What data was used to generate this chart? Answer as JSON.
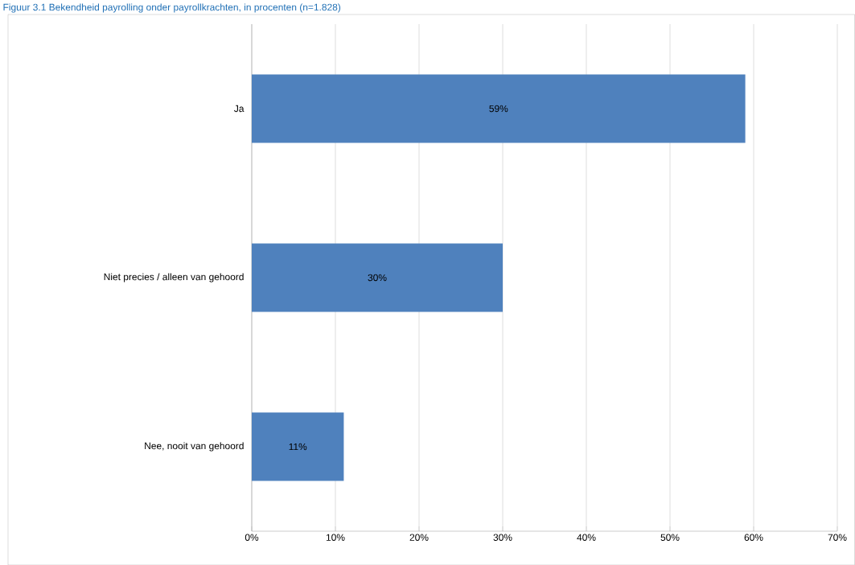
{
  "chart_data": {
    "type": "bar",
    "orientation": "horizontal",
    "title": "Figuur 3.1   Bekendheid payrolling onder payrollkrachten, in procenten (n=1.828)",
    "categories": [
      "Ja",
      "Niet precies / alleen van gehoord",
      "Nee, nooit van gehoord"
    ],
    "values": [
      59,
      30,
      11
    ],
    "color": "#4f81bd",
    "value_labels": [
      "59%",
      "30%",
      "11%"
    ],
    "xlim": [
      0,
      70
    ],
    "xticks": [
      {
        "value": 0,
        "label": "0%"
      },
      {
        "value": 10,
        "label": "10%"
      },
      {
        "value": 20,
        "label": "20%"
      },
      {
        "value": 30,
        "label": "30%"
      },
      {
        "value": 40,
        "label": "40%"
      },
      {
        "value": 50,
        "label": "50%"
      },
      {
        "value": 60,
        "label": "60%"
      },
      {
        "value": 70,
        "label": "70%"
      }
    ],
    "grid": "x"
  }
}
